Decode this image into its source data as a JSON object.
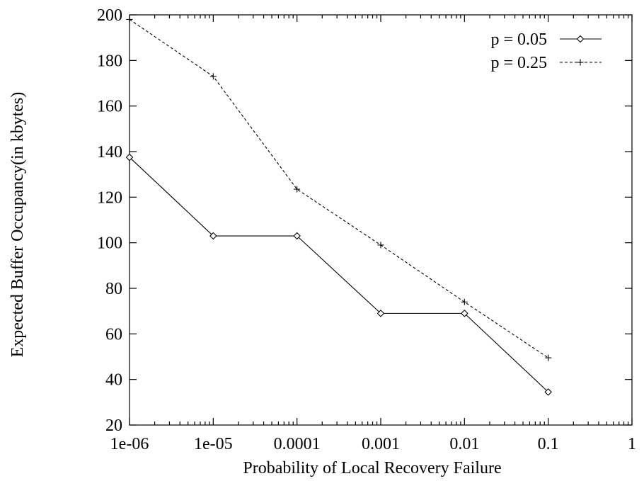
{
  "chart_data": {
    "type": "line",
    "xscale": "log",
    "xlim": [
      1e-06,
      1
    ],
    "ylim": [
      20,
      200
    ],
    "x_ticks": [
      "1e-06",
      "1e-05",
      "0.0001",
      "0.001",
      "0.01",
      "0.1",
      "1"
    ],
    "x_tick_values": [
      1e-06,
      1e-05,
      0.0001,
      0.001,
      0.01,
      0.1,
      1
    ],
    "y_ticks": [
      20,
      40,
      60,
      80,
      100,
      120,
      140,
      160,
      180,
      200
    ],
    "xlabel": "Probability of Local Recovery Failure",
    "ylabel": "Expected Buffer Occupancy(in kbytes)",
    "grid": false,
    "legend_position": "top-right",
    "x": [
      1e-06,
      1e-05,
      0.0001,
      0.001,
      0.01,
      0.1
    ],
    "series": [
      {
        "name": "p = 0.05",
        "values": [
          137.5,
          103,
          103,
          69,
          69,
          34.5
        ],
        "line_style": "solid",
        "marker": "diamond",
        "color": "#000000"
      },
      {
        "name": "p = 0.25",
        "values": [
          198,
          173,
          123.5,
          99,
          74,
          49.5
        ],
        "line_style": "dashed",
        "marker": "plus",
        "color": "#000000"
      }
    ]
  }
}
